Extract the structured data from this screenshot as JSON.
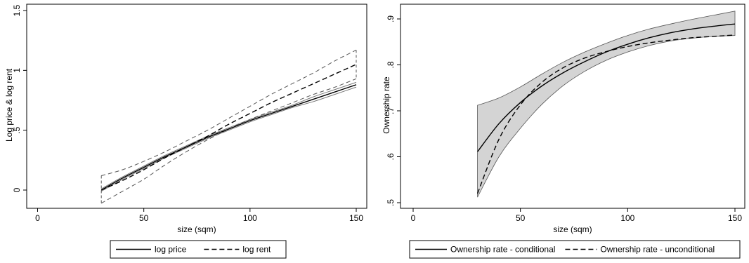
{
  "chart_data": [
    {
      "type": "line",
      "xlabel": "size (sqm)",
      "ylabel": "Log price & log rent",
      "xlim": [
        0,
        150
      ],
      "ylim": [
        -0.1,
        1.5
      ],
      "xticks": [
        0,
        50,
        100,
        150
      ],
      "xtick_labels": [
        "0",
        "50",
        "100",
        "150"
      ],
      "yticks": [
        0,
        0.5,
        1,
        1.5
      ],
      "ytick_labels": [
        "0",
        ".5",
        "1",
        "1.5"
      ],
      "grid": false,
      "legend": "bottom",
      "x": [
        30,
        40,
        50,
        60,
        70,
        80,
        90,
        100,
        110,
        120,
        130,
        140,
        150
      ],
      "series": [
        {
          "name": "log price",
          "style": "solid",
          "values": [
            0.0,
            0.1,
            0.19,
            0.28,
            0.36,
            0.44,
            0.51,
            0.58,
            0.64,
            0.7,
            0.76,
            0.82,
            0.88
          ],
          "band_lower": [
            -0.01,
            0.09,
            0.18,
            0.27,
            0.35,
            0.43,
            0.5,
            0.57,
            0.63,
            0.69,
            0.74,
            0.8,
            0.86
          ],
          "band_upper": [
            0.01,
            0.11,
            0.2,
            0.29,
            0.37,
            0.45,
            0.52,
            0.59,
            0.65,
            0.71,
            0.78,
            0.84,
            0.9
          ]
        },
        {
          "name": "log rent",
          "style": "dashed",
          "values": [
            0.0,
            0.08,
            0.17,
            0.27,
            0.36,
            0.45,
            0.55,
            0.64,
            0.73,
            0.81,
            0.89,
            0.97,
            1.05
          ],
          "band_lower": [
            -0.11,
            -0.01,
            0.09,
            0.21,
            0.32,
            0.42,
            0.51,
            0.59,
            0.66,
            0.73,
            0.8,
            0.86,
            0.93
          ],
          "band_upper": [
            0.12,
            0.17,
            0.24,
            0.32,
            0.41,
            0.5,
            0.6,
            0.7,
            0.8,
            0.89,
            0.98,
            1.08,
            1.17
          ]
        }
      ]
    },
    {
      "type": "line",
      "xlabel": "size (sqm)",
      "ylabel": "Ownership rate",
      "xlim": [
        0,
        150
      ],
      "ylim": [
        0.49,
        0.93
      ],
      "xticks": [
        0,
        50,
        100,
        150
      ],
      "xtick_labels": [
        "0",
        "50",
        "100",
        "150"
      ],
      "yticks": [
        0.5,
        0.6,
        0.7,
        0.8,
        0.9
      ],
      "ytick_labels": [
        ".5",
        ".6",
        ".7",
        ".8",
        ".9"
      ],
      "grid": false,
      "legend": "bottom",
      "x": [
        30,
        40,
        50,
        60,
        70,
        80,
        90,
        100,
        110,
        120,
        130,
        140,
        150
      ],
      "series": [
        {
          "name": "Ownership rate - conditional",
          "style": "solid",
          "values": [
            0.611,
            0.672,
            0.718,
            0.754,
            0.783,
            0.807,
            0.828,
            0.845,
            0.859,
            0.87,
            0.878,
            0.884,
            0.889
          ],
          "band_lower": [
            0.512,
            0.6,
            0.662,
            0.714,
            0.755,
            0.786,
            0.81,
            0.828,
            0.842,
            0.852,
            0.858,
            0.862,
            0.864
          ],
          "band_upper": [
            0.712,
            0.728,
            0.752,
            0.78,
            0.806,
            0.828,
            0.847,
            0.864,
            0.878,
            0.889,
            0.899,
            0.908,
            0.917
          ]
        },
        {
          "name": "Ownership rate - unconditional",
          "style": "dashed",
          "values": [
            0.52,
            0.638,
            0.713,
            0.762,
            0.794,
            0.815,
            0.829,
            0.84,
            0.848,
            0.854,
            0.859,
            0.862,
            0.865
          ]
        }
      ]
    }
  ]
}
